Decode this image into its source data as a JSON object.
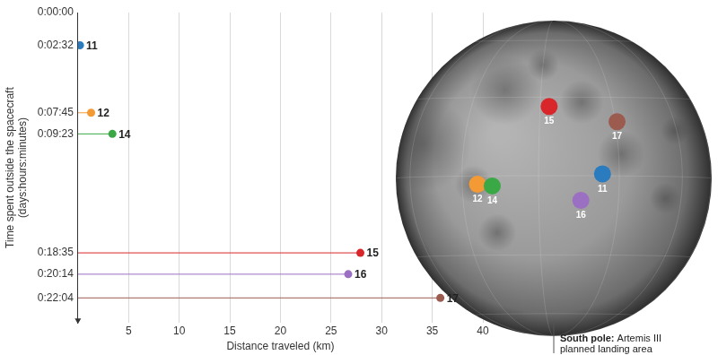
{
  "chart_data": {
    "type": "scatter",
    "x_label": "Distance traveled (km)",
    "y_label": [
      "Time spent outside the spacecraft",
      "(days:hours:minutes)"
    ],
    "point_labels": [
      "11",
      "12",
      "14",
      "15",
      "16",
      "17"
    ],
    "x": [
      0.2,
      1.3,
      3.4,
      27.9,
      26.7,
      35.8
    ],
    "values": [
      152,
      465,
      563,
      1115,
      1214,
      1324
    ],
    "colors": [
      "#2b7bbf",
      "#f39a34",
      "#39a845",
      "#d8262a",
      "#9b6fc2",
      "#9c5b4f"
    ],
    "marker": "circle",
    "line_style": "solid",
    "xlim": [
      0,
      40
    ],
    "xticks": [
      5,
      10,
      15,
      20,
      25,
      30,
      35,
      40
    ],
    "ylim": [
      1440,
      0
    ],
    "yticks": [
      {
        "value": 0,
        "label": "0:00:00"
      },
      {
        "value": 152,
        "label": "0:02:32"
      },
      {
        "value": 465,
        "label": "0:07:45"
      },
      {
        "value": 563,
        "label": "0:09:23"
      },
      {
        "value": 1115,
        "label": "0:18:35"
      },
      {
        "value": 1214,
        "label": "0:20:14"
      },
      {
        "value": 1324,
        "label": "0:22:04"
      }
    ],
    "grid": "x"
  },
  "map": {
    "sites": [
      {
        "label": "11",
        "lat": 0.67,
        "lon": 23.47
      },
      {
        "label": "12",
        "lat": -3.01,
        "lon": -23.42
      },
      {
        "label": "14",
        "lat": -3.65,
        "lon": -17.47
      },
      {
        "label": "15",
        "lat": 26.13,
        "lon": 3.63
      },
      {
        "label": "16",
        "lat": -8.97,
        "lon": 15.5
      },
      {
        "label": "17",
        "lat": 20.19,
        "lon": 30.77
      }
    ],
    "annotation_title": "South pole:",
    "annotation": "Artemis III planned landing area",
    "annotation_lat": -90,
    "annotation_lon": 0
  }
}
